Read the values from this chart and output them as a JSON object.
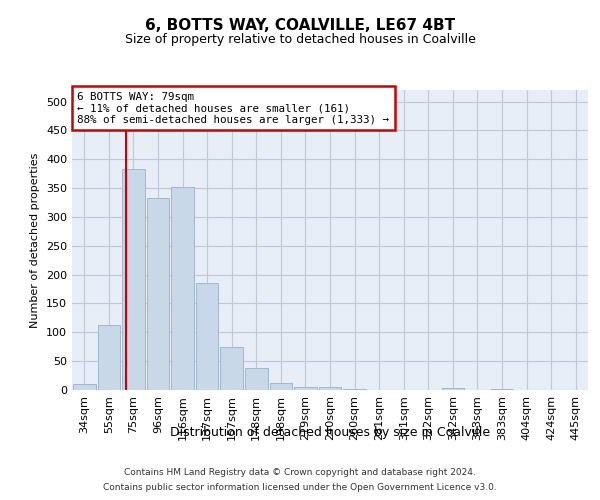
{
  "title": "6, BOTTS WAY, COALVILLE, LE67 4BT",
  "subtitle": "Size of property relative to detached houses in Coalville",
  "xlabel": "Distribution of detached houses by size in Coalville",
  "ylabel": "Number of detached properties",
  "bins": [
    "34sqm",
    "55sqm",
    "75sqm",
    "96sqm",
    "116sqm",
    "137sqm",
    "157sqm",
    "178sqm",
    "198sqm",
    "219sqm",
    "240sqm",
    "260sqm",
    "281sqm",
    "301sqm",
    "322sqm",
    "342sqm",
    "363sqm",
    "383sqm",
    "404sqm",
    "424sqm",
    "445sqm"
  ],
  "values": [
    10,
    113,
    383,
    332,
    352,
    185,
    75,
    38,
    12,
    6,
    5,
    1,
    0,
    0,
    0,
    3,
    0,
    2,
    0,
    0,
    0
  ],
  "bar_color": "#c8d8e8",
  "bar_edge_color": "#a0b8d0",
  "grid_color": "#c0c8d8",
  "background_color": "#e8eef8",
  "marker_line_color": "#cc0000",
  "annotation_title": "6 BOTTS WAY: 79sqm",
  "annotation_line1": "← 11% of detached houses are smaller (161)",
  "annotation_line2": "88% of semi-detached houses are larger (1,333) →",
  "annotation_box_color": "#ffffff",
  "annotation_border_color": "#cc0000",
  "ylim": [
    0,
    520
  ],
  "yticks": [
    0,
    50,
    100,
    150,
    200,
    250,
    300,
    350,
    400,
    450,
    500
  ],
  "footnote1": "Contains HM Land Registry data © Crown copyright and database right 2024.",
  "footnote2": "Contains public sector information licensed under the Open Government Licence v3.0."
}
